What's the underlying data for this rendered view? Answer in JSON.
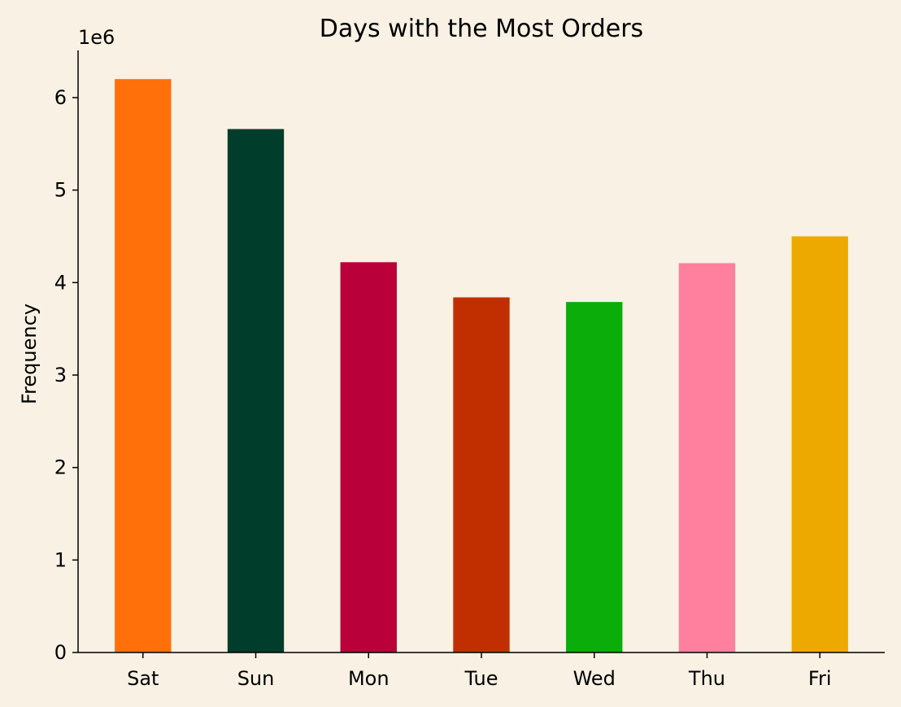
{
  "chart_data": {
    "type": "bar",
    "title": "Days with the Most Orders",
    "xlabel": "",
    "ylabel": "Frequency",
    "y_scale_offset": "1e6",
    "categories": [
      "Sat",
      "Sun",
      "Mon",
      "Tue",
      "Wed",
      "Thu",
      "Fri"
    ],
    "values": [
      6.2,
      5.66,
      4.22,
      3.84,
      3.79,
      4.21,
      4.5
    ],
    "value_multiplier": 1000000,
    "colors": [
      "#ff6f0a",
      "#003d2b",
      "#b9003a",
      "#c12f00",
      "#0aad0a",
      "#ff7f9f",
      "#eda900"
    ],
    "yticks": [
      0,
      1,
      2,
      3,
      4,
      5,
      6
    ],
    "ylim": [
      0,
      6.51
    ],
    "grid": false,
    "legend": "none"
  }
}
